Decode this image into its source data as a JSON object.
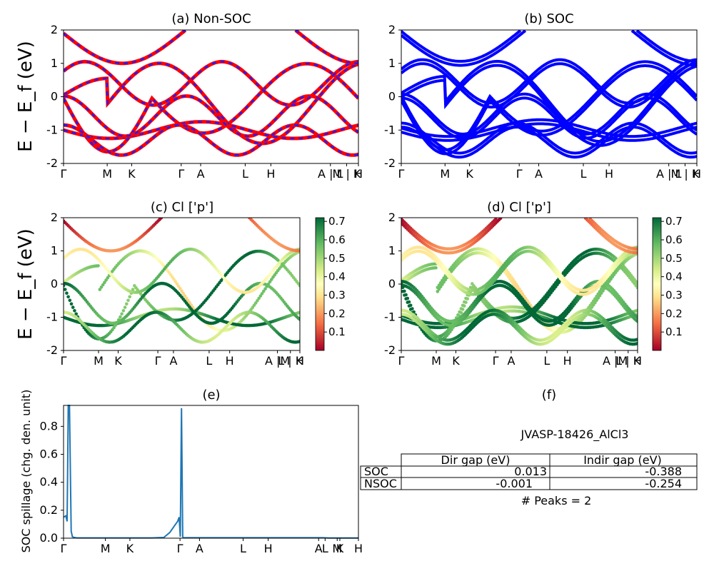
{
  "chart_data": [
    {
      "id": "a",
      "type": "line",
      "title": "(a) Non-SOC",
      "ylabel": "E − E_f (eV)",
      "ylim": [
        -2,
        2
      ],
      "yticks": [
        "-2",
        "-1",
        "0",
        "1",
        "2"
      ],
      "kticks": [
        "Γ",
        "M",
        "K",
        "Γ",
        "A",
        "L",
        "H",
        "A | L",
        "M | K",
        "H"
      ],
      "series_colors": [
        "#ff0000",
        "#1f1fff"
      ],
      "series_style": "red solid with blue dashed overlay",
      "bands": 7
    },
    {
      "id": "b",
      "type": "line",
      "title": "(b) SOC",
      "ylim": [
        -2,
        2
      ],
      "yticks": [
        "-2",
        "-1",
        "0",
        "1",
        "2"
      ],
      "kticks": [
        "Γ",
        "M",
        "K",
        "Γ",
        "A",
        "L",
        "H",
        "A | L",
        "M | K",
        "H"
      ],
      "series_colors": [
        "#0000ff"
      ],
      "split": true
    },
    {
      "id": "c",
      "type": "scatter",
      "title": "(c)  Cl ['p']",
      "ylabel": "E − E_f (eV)",
      "ylim": [
        -2,
        2
      ],
      "yticks": [
        "-2",
        "-1",
        "0",
        "1",
        "2"
      ],
      "kticks": [
        "Γ",
        "M",
        "K",
        "Γ",
        "A",
        "L",
        "H",
        "A |M",
        "L | K",
        "H"
      ],
      "colorbar": {
        "ticks": [
          "0.1",
          "0.2",
          "0.3",
          "0.4",
          "0.5",
          "0.6",
          "0.7"
        ],
        "range": [
          0,
          0.72
        ],
        "colormap": "RdYlGn"
      }
    },
    {
      "id": "d",
      "type": "scatter",
      "title": "(d) Cl ['p']",
      "ylim": [
        -2,
        2
      ],
      "yticks": [
        "-2",
        "-1",
        "0",
        "1",
        "2"
      ],
      "kticks": [
        "Γ",
        "M",
        "K",
        "Γ",
        "A",
        "L",
        "H",
        "A |M",
        "L | K",
        "H"
      ],
      "colorbar": {
        "ticks": [
          "0.1",
          "0.2",
          "0.3",
          "0.4",
          "0.5",
          "0.6",
          "0.7"
        ],
        "range": [
          0,
          0.72
        ],
        "colormap": "RdYlGn"
      }
    },
    {
      "id": "e",
      "type": "line",
      "title": "(e)",
      "ylabel": "SOC spillage (chg. den. unit)",
      "ylim": [
        0,
        0.95
      ],
      "yticks": [
        "0.0",
        "0.2",
        "0.4",
        "0.6",
        "0.8"
      ],
      "kticks": [
        "Γ",
        "M",
        "K",
        "Γ",
        "A",
        "L",
        "H",
        "A",
        "L",
        "M",
        "K",
        "H"
      ],
      "color": "#1f77b4",
      "x": [
        0,
        0.008,
        0.012,
        0.016,
        0.02,
        0.026,
        0.03,
        0.036,
        0.045,
        0.1,
        0.2,
        0.3,
        0.34,
        0.36,
        0.38,
        0.387,
        0.392,
        0.396,
        0.4,
        0.404,
        0.406,
        0.41,
        0.42,
        0.5,
        0.6,
        0.7,
        0.8,
        0.88,
        0.9,
        1.0
      ],
      "values": [
        0.15,
        0.16,
        0.12,
        0.95,
        0.95,
        0.05,
        0.01,
        0.005,
        0.002,
        0.002,
        0.002,
        0.002,
        0.005,
        0.04,
        0.1,
        0.12,
        0.15,
        0.01,
        0.93,
        0.01,
        0.003,
        0.003,
        0.003,
        0.003,
        0.003,
        0.003,
        0.003,
        0.003,
        0.001,
        0.001
      ]
    },
    {
      "id": "f",
      "type": "table",
      "title": "(f)",
      "heading": "JVASP-18426_AlCl3",
      "columns": [
        "Dir gap (eV)",
        "Indir gap (eV)"
      ],
      "rows": [
        {
          "label": "SOC",
          "values": [
            "0.013",
            "-0.388"
          ]
        },
        {
          "label": "NSOC",
          "values": [
            "-0.001",
            "-0.254"
          ]
        }
      ],
      "footer": "# Peaks = 2"
    }
  ]
}
